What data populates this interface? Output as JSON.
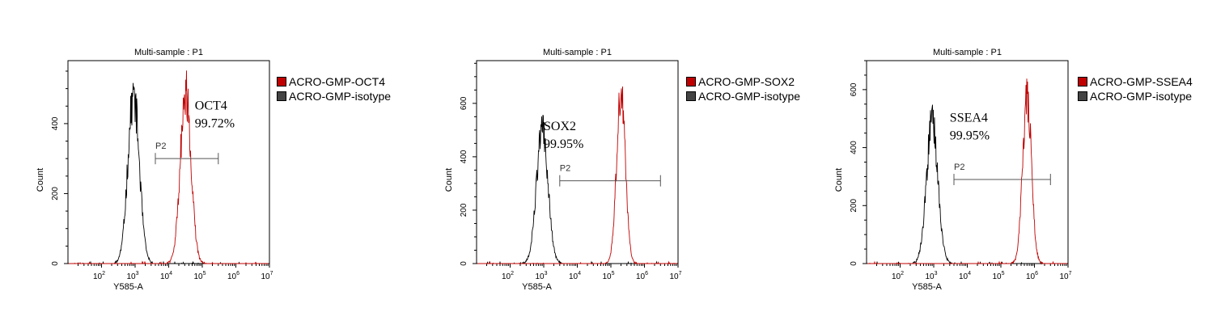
{
  "chart_data": [
    {
      "type": "histogram",
      "title": "Multi-sample : P1",
      "xlabel": "Y585-A",
      "ylabel": "Count",
      "x_scale": "log",
      "xlim": [
        10,
        10000000
      ],
      "ylim": [
        0,
        580
      ],
      "x_ticks": [
        {
          "v": 100,
          "e": "2"
        },
        {
          "v": 1000,
          "e": "3"
        },
        {
          "v": 10000,
          "e": "4"
        },
        {
          "v": 100000,
          "e": "5"
        },
        {
          "v": 1000000,
          "e": "6"
        },
        {
          "v": 10000000,
          "e": "7"
        }
      ],
      "y_ticks": [
        0,
        200,
        400
      ],
      "gate": {
        "label": "P2",
        "x_start": 4000,
        "x_end": 300000,
        "y": 300
      },
      "annotation": {
        "line1": "OCT4",
        "line2": "99.72%",
        "x": 60000,
        "y": 440
      },
      "legend": [
        "ACRO-GMP-OCT4",
        "ACRO-GMP-isotype"
      ],
      "series": [
        {
          "name": "ACRO-GMP-isotype",
          "color": "#000000",
          "peak_x": 900,
          "width": 0.17,
          "peak_y": 480,
          "seed": 11
        },
        {
          "name": "ACRO-GMP-OCT4",
          "color": "#c00000",
          "peak_x": 32000,
          "width": 0.16,
          "peak_y": 490,
          "seed": 29
        }
      ]
    },
    {
      "type": "histogram",
      "title": "Multi-sample : P1",
      "xlabel": "Y585-A",
      "ylabel": "Count",
      "x_scale": "log",
      "xlim": [
        10,
        10000000
      ],
      "ylim": [
        0,
        760
      ],
      "x_ticks": [
        {
          "v": 100,
          "e": "2"
        },
        {
          "v": 1000,
          "e": "3"
        },
        {
          "v": 10000,
          "e": "4"
        },
        {
          "v": 100000,
          "e": "5"
        },
        {
          "v": 1000000,
          "e": "6"
        },
        {
          "v": 10000000,
          "e": "7"
        }
      ],
      "y_ticks": [
        0,
        200,
        400,
        600
      ],
      "gate": {
        "label": "P2",
        "x_start": 3000,
        "x_end": 3000000,
        "y": 310
      },
      "annotation": {
        "line1": "SOX2",
        "line2": "99.95%",
        "x": 1000,
        "y": 500
      },
      "legend": [
        "ACRO-GMP-SOX2",
        "ACRO-GMP-isotype"
      ],
      "series": [
        {
          "name": "ACRO-GMP-isotype",
          "color": "#000000",
          "peak_x": 900,
          "width": 0.17,
          "peak_y": 500,
          "seed": 13
        },
        {
          "name": "ACRO-GMP-SOX2",
          "color": "#c00000",
          "peak_x": 200000,
          "width": 0.13,
          "peak_y": 630,
          "seed": 37
        }
      ]
    },
    {
      "type": "histogram",
      "title": "Multi-sample : P1",
      "xlabel": "Y585-A",
      "ylabel": "Count",
      "x_scale": "log",
      "xlim": [
        10,
        10000000
      ],
      "ylim": [
        0,
        700
      ],
      "x_ticks": [
        {
          "v": 100,
          "e": "2"
        },
        {
          "v": 1000,
          "e": "3"
        },
        {
          "v": 10000,
          "e": "4"
        },
        {
          "v": 100000,
          "e": "5"
        },
        {
          "v": 1000000,
          "e": "6"
        },
        {
          "v": 10000000,
          "e": "7"
        }
      ],
      "y_ticks": [
        0,
        200,
        400,
        600
      ],
      "gate": {
        "label": "P2",
        "x_start": 4000,
        "x_end": 3000000,
        "y": 290
      },
      "annotation": {
        "line1": "SSEA4",
        "line2": "99.95%",
        "x": 3000,
        "y": 490
      },
      "legend": [
        "ACRO-GMP-SSEA4",
        "ACRO-GMP-isotype"
      ],
      "series": [
        {
          "name": "ACRO-GMP-isotype",
          "color": "#000000",
          "peak_x": 900,
          "width": 0.17,
          "peak_y": 485,
          "seed": 17
        },
        {
          "name": "ACRO-GMP-SSEA4",
          "color": "#c00000",
          "peak_x": 600000,
          "width": 0.13,
          "peak_y": 580,
          "seed": 41
        }
      ]
    }
  ]
}
